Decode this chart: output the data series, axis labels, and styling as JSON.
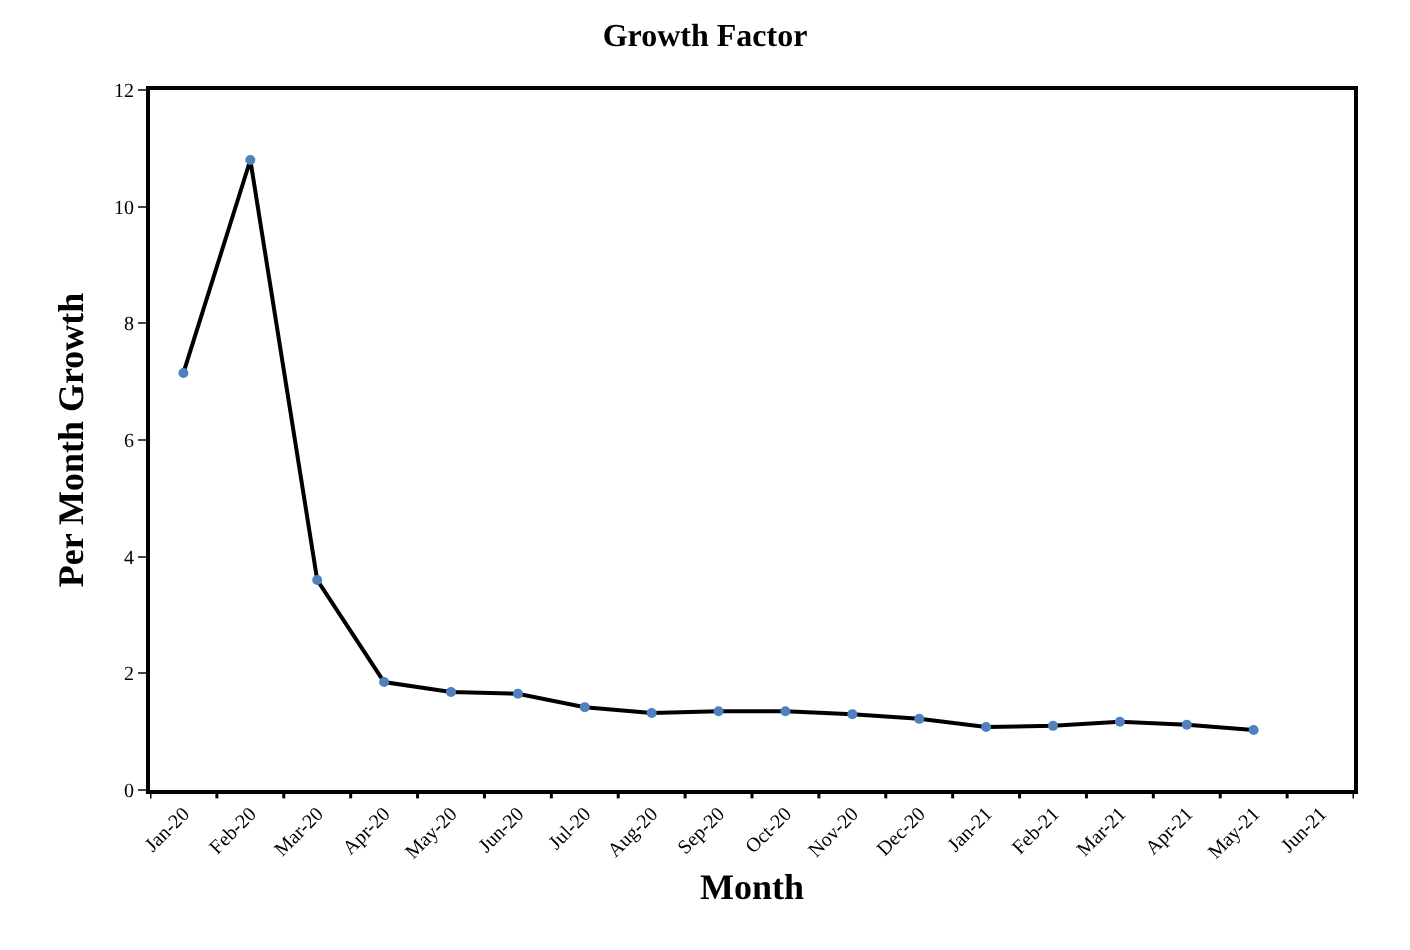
{
  "chart_data": {
    "type": "line",
    "title": "Growth Factor",
    "xlabel": "Month",
    "ylabel": "Per Month Growth",
    "categories": [
      "Jan-20",
      "Feb-20",
      "Mar-20",
      "Apr-20",
      "May-20",
      "Jun-20",
      "Jul-20",
      "Aug-20",
      "Sep-20",
      "Oct-20",
      "Nov-20",
      "Dec-20",
      "Jan-21",
      "Feb-21",
      "Mar-21",
      "Apr-21",
      "May-21",
      "Jun-21"
    ],
    "series": [
      {
        "color": "#000000",
        "colors": [
          "#4f81bd",
          "#4f81bd",
          "#4f81bd",
          "#4f81bd",
          "#4f81bd",
          "#4f81bd",
          "#4f81bd",
          "#4f81bd",
          "#4f81bd",
          "#4f81bd",
          "#4f81bd",
          "#4f81bd",
          "#4f81bd",
          "#4f81bd",
          "#4f81bd",
          "#4f81bd",
          "#4f81bd",
          "#4f81bd"
        ],
        "values": [
          7.15,
          10.8,
          3.6,
          1.85,
          1.68,
          1.65,
          1.42,
          1.32,
          1.35,
          1.35,
          1.3,
          1.22,
          1.08,
          1.1,
          1.17,
          1.12,
          1.03,
          null
        ]
      }
    ],
    "ylim": [
      0,
      12
    ],
    "yticks": [
      0,
      2,
      4,
      6,
      8,
      10,
      12
    ],
    "marker": "circle",
    "line_style": "solid"
  }
}
